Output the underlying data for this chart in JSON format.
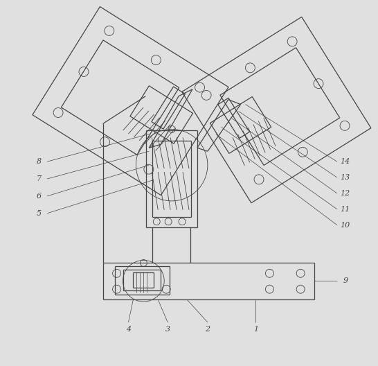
{
  "bg_color": "#e0e0e0",
  "line_color": "#444444",
  "fig_width": 5.46,
  "fig_height": 5.28,
  "dpi": 100
}
